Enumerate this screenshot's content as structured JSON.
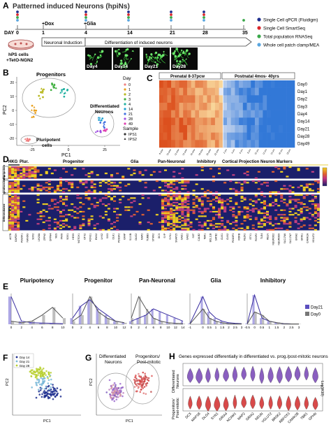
{
  "figure": {
    "panel_letters": [
      "A",
      "B",
      "C",
      "D",
      "E",
      "F",
      "G",
      "H"
    ]
  },
  "panelA": {
    "title": "Patterned induced Neurons (hpiNs)",
    "day_label": "DAY",
    "days": [
      "0",
      "1",
      "4",
      "14",
      "21",
      "28",
      "35"
    ],
    "dox_label": "+Dox",
    "glia_label": "+Glia",
    "phase1": "Neuronal Induction",
    "phase2": "Differentiation of induced neurons",
    "dish_label_1": "hPS cells",
    "dish_label_2": "+TetO-NGN2",
    "micrographs": [
      "Day4",
      "Day14",
      "Day21",
      "Day28"
    ],
    "legend": [
      {
        "label": "Single Cell qPCR (Fluidigm)",
        "color": "#1f2f8f"
      },
      {
        "label": "Single Cell SmartSeq",
        "color": "#d9262b"
      },
      {
        "label": "Total population RNASeq",
        "color": "#3aa84a"
      },
      {
        "label": "Whole cell patch clamp/MEA",
        "color": "#5aa6df"
      }
    ]
  },
  "panelB": {
    "xlabel": "PC1",
    "ylabel": "PC2",
    "group_labels": [
      "Progenitors",
      "Differentiated Neurons",
      "Pluripotent cells"
    ],
    "legend_title": "Day",
    "days": [
      {
        "label": "0",
        "color": "#f08080"
      },
      {
        "label": "1",
        "color": "#e8a020"
      },
      {
        "label": "2",
        "color": "#b8b820"
      },
      {
        "label": "3",
        "color": "#40b040"
      },
      {
        "label": "4",
        "color": "#20b0a0"
      },
      {
        "label": "14",
        "color": "#20a0d0"
      },
      {
        "label": "21",
        "color": "#4070e0"
      },
      {
        "label": "28",
        "color": "#a050e0"
      },
      {
        "label": "49",
        "color": "#e040b0"
      }
    ],
    "sample_title": "Sample",
    "samples": [
      "IPS1",
      "IPS2"
    ],
    "x_ticks": [
      "-25",
      "0",
      "25"
    ],
    "y_ticks": [
      "20",
      "10",
      "0",
      "-10",
      "-20"
    ]
  },
  "panelC": {
    "headers": [
      "Prenatal 8-37pcw",
      "Postnatal 4mos- 40yrs"
    ],
    "rows": [
      "Day0",
      "Day1",
      "Day2",
      "Day3",
      "Day4",
      "Day14",
      "Day21",
      "Day28",
      "Day49"
    ]
  },
  "panelD": {
    "headers": [
      "HKG",
      "Plur.",
      "Progenitor",
      "Glia",
      "Pan-Neuronal",
      "Inhibitory",
      "Cortical Projection Neuron Markers"
    ],
    "row_groups": [
      "Pluripotent",
      "Progenitors/early",
      "Differentiated Neurons"
    ],
    "genes": [
      "ACTB",
      "GAPDH",
      "POU5F1",
      "NANOG",
      "SOX2",
      "LIN28A",
      "ZFP42",
      "DPPA4",
      "NES",
      "PAX6",
      "SOX1",
      "HES5",
      "NOTCH1",
      "OTX2",
      "FOXG1",
      "EMX2",
      "LHX2",
      "SIX3",
      "DLK1",
      "POU3F2",
      "GFAP",
      "S100B",
      "OLIG2",
      "MAP2",
      "TUBB3",
      "STMN2",
      "DCX",
      "SYP",
      "SYN1",
      "SNAP25",
      "GAD1",
      "GAD2",
      "SST",
      "CALB2",
      "TBR1",
      "BCL11B",
      "SATB2",
      "CUX1",
      "CUX2",
      "POU3F3",
      "RORB",
      "FEZF2",
      "ETV1",
      "FOXP2",
      "TLE4",
      "RELN",
      "NEUROD2",
      "NEUROD6",
      "SLC17A6",
      "SLC17A7",
      "GRIA2",
      "GRIN1",
      "CAMK2A",
      "VGLUT2"
    ]
  },
  "panelE": {
    "titles": [
      "Pluripotency",
      "Progenitor",
      "Pan-Neuronal",
      "Glia",
      "Inhibitory"
    ],
    "legend": [
      {
        "label": "Day21",
        "color": "#5b4fbf"
      },
      {
        "label": "Day0",
        "color": "#777777"
      }
    ],
    "chart_data": [
      {
        "type": "area",
        "title": "Pluripotency",
        "x": [
          0,
          2,
          4,
          6,
          8,
          10
        ],
        "series": [
          {
            "name": "Day21",
            "values": [
              0.9,
              0.1,
              0.05,
              0.04,
              0.03,
              0.02
            ]
          },
          {
            "name": "Day0",
            "values": [
              0.1,
              0.05,
              0.1,
              0.3,
              0.55,
              0.2
            ]
          }
        ]
      },
      {
        "type": "area",
        "title": "Progenitor",
        "x": [
          0,
          2,
          4,
          6,
          8,
          10,
          12
        ],
        "series": [
          {
            "name": "Day21",
            "values": [
              0.2,
              0.6,
              0.8,
              0.5,
              0.3,
              0.1,
              0.05
            ]
          },
          {
            "name": "Day0",
            "values": [
              0.1,
              0.3,
              0.9,
              0.4,
              0.2,
              0.1,
              0.05
            ]
          }
        ]
      },
      {
        "type": "area",
        "title": "Pan-Neuronal",
        "x": [
          0,
          2,
          4,
          6,
          8,
          10,
          12,
          14
        ],
        "series": [
          {
            "name": "Day21",
            "values": [
              0.1,
              0.2,
              0.3,
              0.5,
              0.4,
              0.3,
              0.2,
              0.1
            ]
          },
          {
            "name": "Day0",
            "values": [
              0.2,
              0.9,
              0.5,
              0.2,
              0.1,
              0.05,
              0.03,
              0.02
            ]
          }
        ]
      },
      {
        "type": "area",
        "title": "Glia",
        "x": [
          -1,
          0,
          0.5,
          1,
          1.5,
          2,
          2.5,
          3
        ],
        "series": [
          {
            "name": "Day21",
            "values": [
              0.02,
              0.9,
              0.4,
              0.2,
              0.1,
              0.05,
              0.03,
              0.02
            ]
          },
          {
            "name": "Day0",
            "values": [
              0.01,
              0.5,
              0.2,
              0.1,
              0.05,
              0.02,
              0.01,
              0.01
            ]
          }
        ]
      },
      {
        "type": "area",
        "title": "Inhibitory",
        "x": [
          -0.5,
          0,
          0.5,
          1,
          1.5,
          2,
          2.5,
          3
        ],
        "series": [
          {
            "name": "Day21",
            "values": [
              0.02,
              0.95,
              0.2,
              0.1,
              0.05,
              0.02,
              0.01,
              0.01
            ]
          },
          {
            "name": "Day0",
            "values": [
              0.01,
              0.4,
              0.3,
              0.1,
              0.05,
              0.02,
              0.01,
              0.01
            ]
          }
        ]
      }
    ]
  },
  "panelF": {
    "legend": [
      {
        "label": "Day 14",
        "color": "#1f2f8f"
      },
      {
        "label": "Day 21",
        "color": "#7ab8d8"
      },
      {
        "label": "Day 28",
        "color": "#b8d030"
      }
    ],
    "xlabel": "PC1",
    "ylabel": "PC2"
  },
  "panelG": {
    "labels": [
      "Differentiated Neurons",
      "Progenitors/ Post-mitotic"
    ],
    "xlabel": "PC1",
    "ylabel": "PC2"
  },
  "panelH": {
    "title": "Genes expressed differentially in differentiated vs. prog./post-mitotic neurons",
    "row_labels": [
      "Differentiated Neurons",
      "Progenitors/ Post-mitotic"
    ],
    "ylabel": "Log(tX10)",
    "genes": [
      "DCX",
      "MAP1B",
      "DLG4",
      "SYN1",
      "GRIA4",
      "NCAM1",
      "MAP2",
      "GRIA2",
      "NEUN",
      "VGLUT2",
      "BRSK2",
      "RBFOX3",
      "CAMK2B",
      "TBR1",
      "GPHN"
    ]
  }
}
